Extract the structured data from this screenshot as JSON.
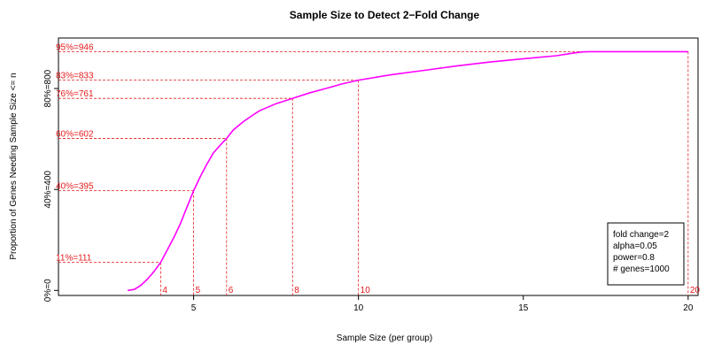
{
  "chart_data": {
    "type": "line",
    "title": "Sample Size to Detect 2−Fold Change",
    "xlabel": "Sample Size (per group)",
    "ylabel": "Proportion of Genes Needing Sample Size <= n",
    "xlim": [
      0.9,
      20.3
    ],
    "ylim": [
      -20,
      1000
    ],
    "x_ticks": [
      {
        "value": 5,
        "label": "5"
      },
      {
        "value": 10,
        "label": "10"
      },
      {
        "value": 15,
        "label": "15"
      },
      {
        "value": 20,
        "label": "20"
      }
    ],
    "y_ticks": [
      {
        "value": 0,
        "label": "0%=0"
      },
      {
        "value": 400,
        "label": "40%=400"
      },
      {
        "value": 800,
        "label": "80%=800"
      }
    ],
    "grid": false,
    "series": [
      {
        "color": "#ff00ff",
        "x": [
          3.0,
          3.2,
          3.4,
          3.6,
          3.8,
          4.0,
          4.2,
          4.4,
          4.6,
          4.8,
          5.0,
          5.2,
          5.4,
          5.6,
          5.8,
          6.0,
          6.2,
          6.5,
          6.8,
          7.0,
          7.5,
          8.0,
          8.5,
          9.0,
          9.5,
          10.0,
          11.0,
          12.0,
          13.0,
          14.0,
          15.0,
          16.0,
          16.5,
          16.8,
          17.0,
          18.0,
          19.0,
          20.0
        ],
        "y": [
          0,
          4,
          20,
          45,
          75,
          111,
          160,
          210,
          265,
          330,
          395,
          450,
          500,
          545,
          575,
          602,
          635,
          668,
          695,
          712,
          740,
          761,
          782,
          800,
          818,
          833,
          855,
          872,
          890,
          905,
          918,
          930,
          940,
          945,
          946,
          946,
          946,
          946
        ]
      }
    ],
    "reference_points": [
      {
        "x": 4,
        "y": 111,
        "label": "11%=111",
        "xlabel": "4"
      },
      {
        "x": 5,
        "y": 395,
        "label": "40%=395",
        "xlabel": "5"
      },
      {
        "x": 6,
        "y": 602,
        "label": "60%=602",
        "xlabel": "6"
      },
      {
        "x": 8,
        "y": 761,
        "label": "76%=761",
        "xlabel": "8"
      },
      {
        "x": 10,
        "y": 833,
        "label": "83%=833",
        "xlabel": "10"
      },
      {
        "x": 20,
        "y": 946,
        "label": "95%=946",
        "xlabel": "20"
      }
    ],
    "legend": {
      "placement": "bottom-right",
      "lines": [
        "fold change=2",
        "alpha=0.05",
        "power=0.8",
        "# genes=1000"
      ]
    },
    "colors": {
      "curve": "#ff00ff",
      "reference": "#e41a1c",
      "axis": "#000000"
    }
  }
}
